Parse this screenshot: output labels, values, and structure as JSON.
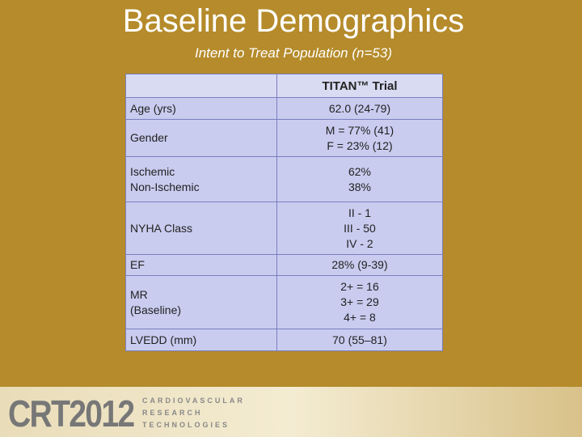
{
  "header": {
    "title": "Baseline Demographics",
    "subtitle": "Intent to Treat Population (n=53)"
  },
  "table": {
    "column_header": "TITAN™ Trial",
    "rows": [
      {
        "label": [
          "Age (yrs)"
        ],
        "value": [
          "62.0  (24-79)"
        ]
      },
      {
        "label": [
          "Gender"
        ],
        "value": [
          "M = 77% (41)",
          "F = 23% (12)"
        ]
      },
      {
        "label": [
          "Ischemic",
          "Non-Ischemic"
        ],
        "value": [
          "62%",
          "38%"
        ]
      },
      {
        "label": [
          "NYHA Class"
        ],
        "value": [
          "II -  1",
          "III - 50",
          "IV - 2"
        ]
      },
      {
        "label": [
          "EF"
        ],
        "value": [
          "28% (9-39)"
        ]
      },
      {
        "label": [
          "MR",
          "(Baseline)"
        ],
        "value": [
          "2+ = 16",
          "3+ = 29",
          "4+ =   8"
        ]
      },
      {
        "label": [
          "LVEDD (mm)"
        ],
        "value": [
          "70 (55–81)"
        ]
      }
    ]
  },
  "footer": {
    "logo": "CRT2012",
    "org": [
      "CARDIOVASCULAR",
      "RESEARCH",
      "TECHNOLOGIES"
    ]
  }
}
